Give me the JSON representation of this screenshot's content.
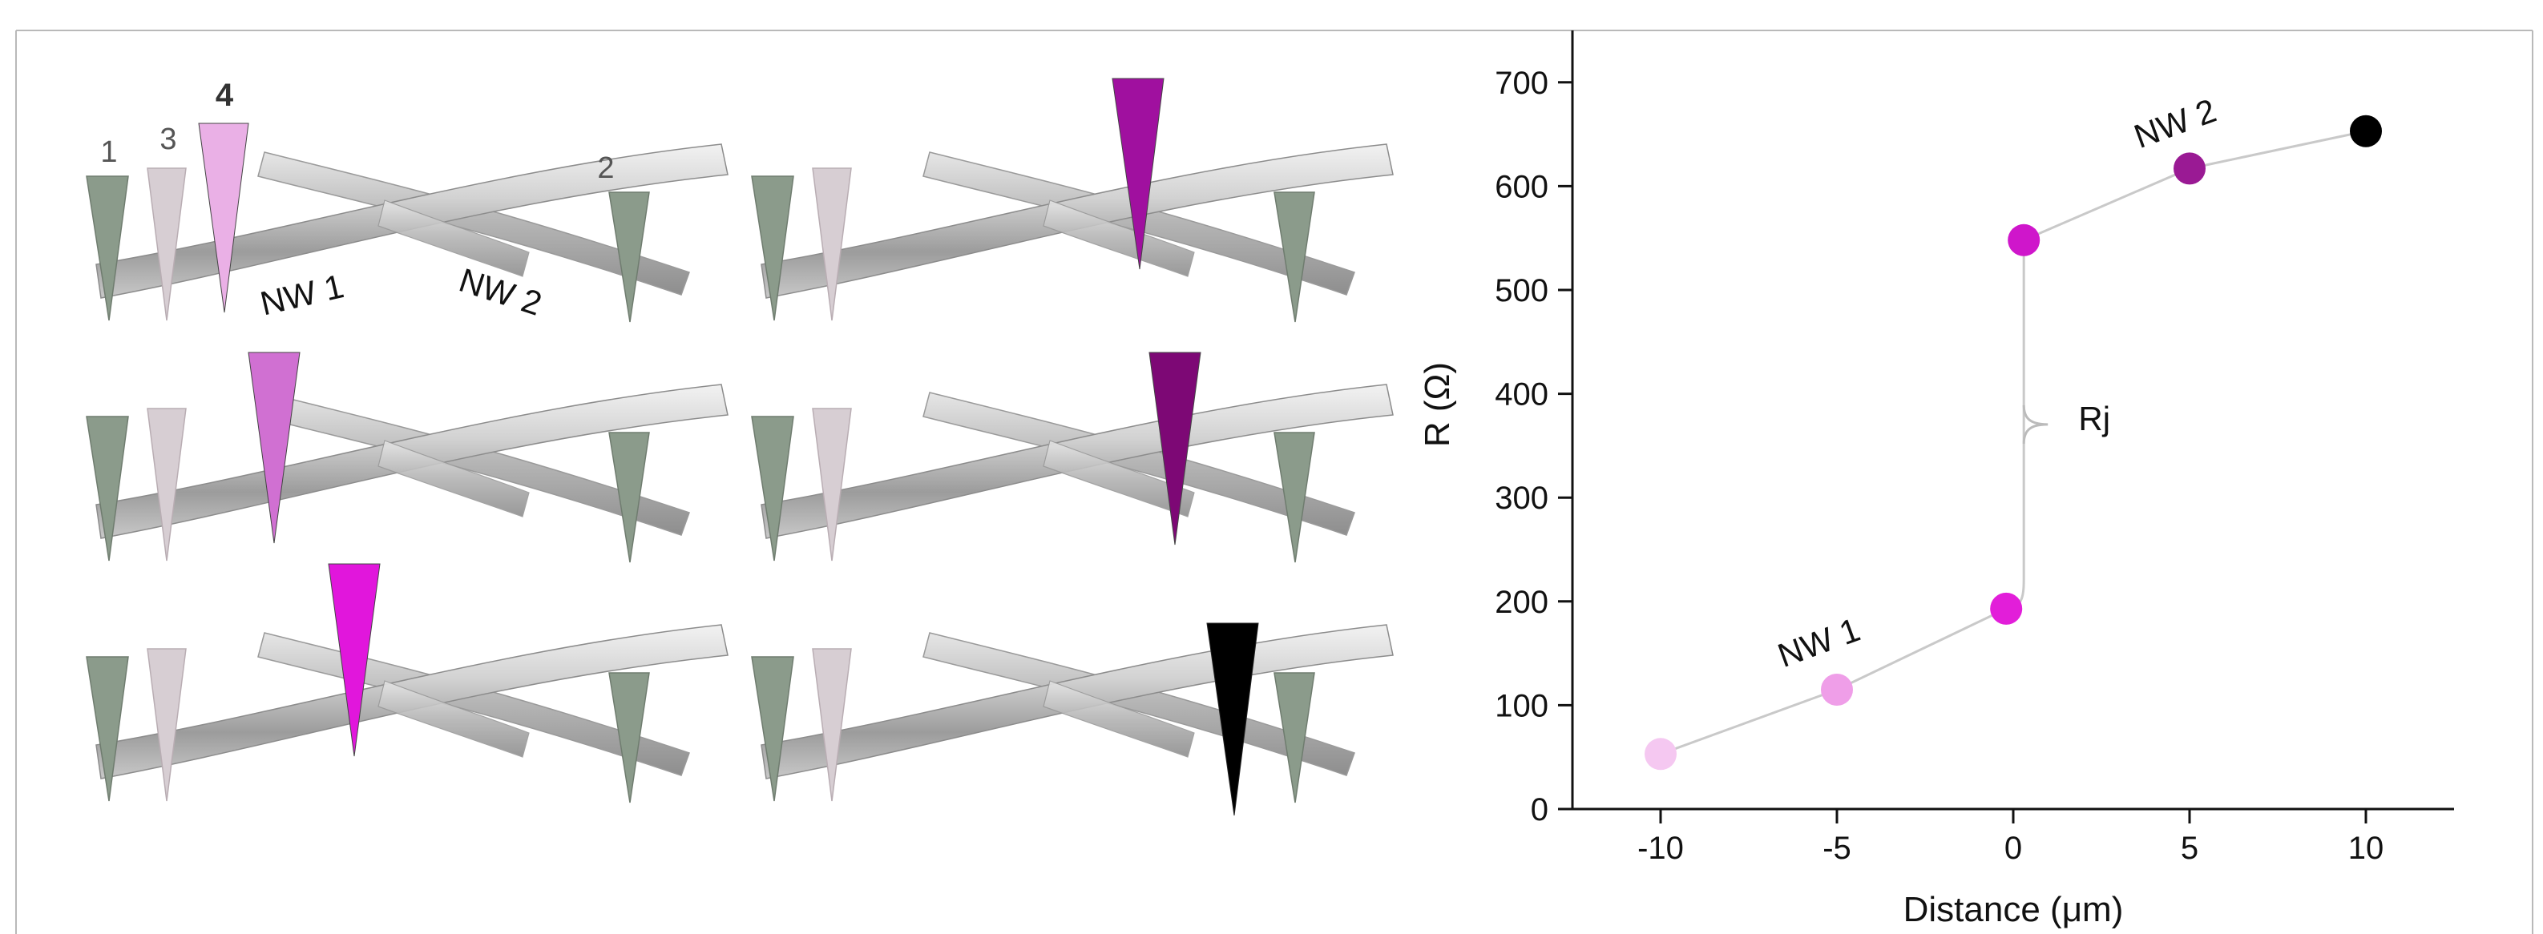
{
  "schematic": {
    "probe_labels": [
      "1",
      "3",
      "4",
      "2"
    ],
    "wire_labels": [
      "NW 1",
      "NW 2"
    ],
    "panels": [
      {
        "probe_color": "#eab0e6"
      },
      {
        "probe_color": "#a0109f"
      },
      {
        "probe_color": "#d070d2"
      },
      {
        "probe_color": "#7d0875"
      },
      {
        "probe_color": "#e116dc"
      },
      {
        "probe_color": "#000000"
      }
    ],
    "fixed_probe_colors": {
      "outer": "#8a9a8a",
      "inner": "#d6cdd2"
    }
  },
  "chart_data": {
    "type": "scatter",
    "xlabel": "Distance (μm)",
    "ylabel": "R (Ω)",
    "xlim": [
      -12.5,
      12.5
    ],
    "ylim": [
      0,
      750
    ],
    "xticks": [
      -10,
      -5,
      0,
      5,
      10
    ],
    "yticks": [
      0,
      100,
      200,
      300,
      400,
      500,
      600,
      700
    ],
    "grid": false,
    "points": [
      {
        "x": -10,
        "y": 53,
        "color": "#f5c8f1"
      },
      {
        "x": -5,
        "y": 115,
        "color": "#ef9ee8"
      },
      {
        "x": -0.2,
        "y": 193,
        "color": "#e21ed9"
      },
      {
        "x": 0.3,
        "y": 548,
        "color": "#cf16cb"
      },
      {
        "x": 5,
        "y": 617,
        "color": "#9a1a94"
      },
      {
        "x": 10,
        "y": 653,
        "color": "#000000"
      }
    ],
    "annotations": [
      {
        "text": "NW 1",
        "x": -5.4,
        "y": 150
      },
      {
        "text": "NW 2",
        "x": 4.7,
        "y": 650
      },
      {
        "text": "Rj",
        "x": 2.3,
        "y": 365
      }
    ]
  }
}
